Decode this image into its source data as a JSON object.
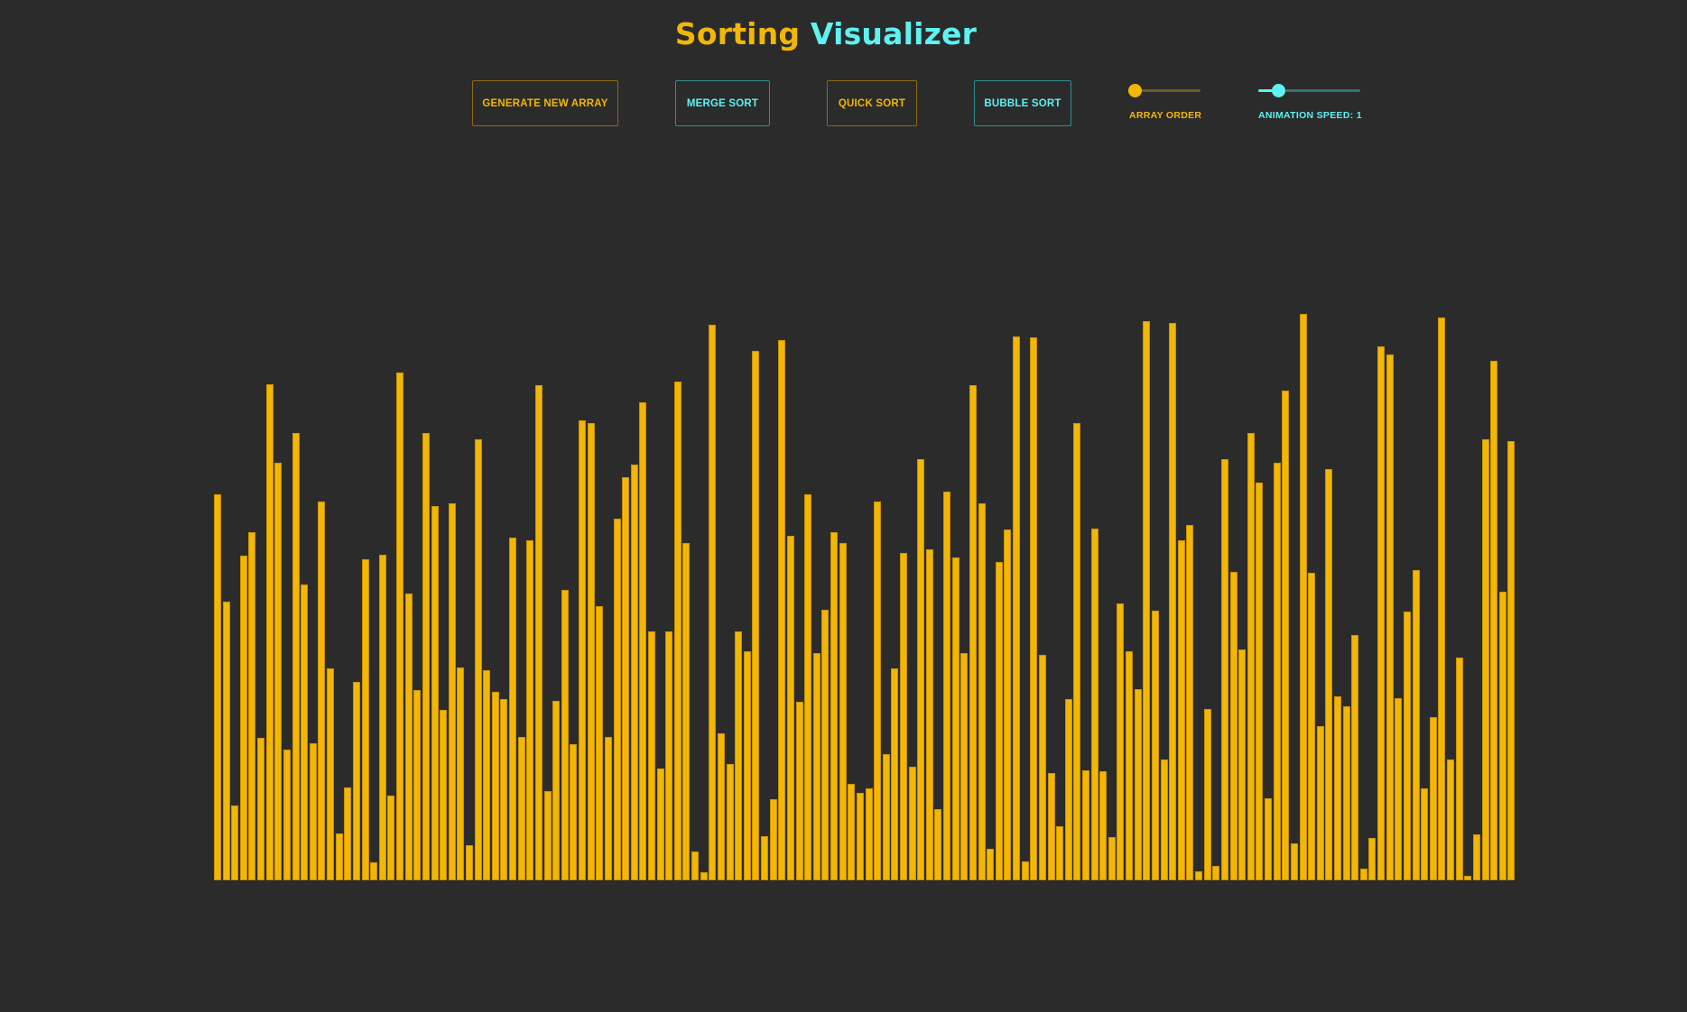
{
  "header": {
    "title_part1": "Sorting",
    "title_part2": "Visualizer"
  },
  "controls": {
    "generate_label": "GENERATE NEW ARRAY",
    "merge_label": "MERGE SORT",
    "quick_label": "QUICK SORT",
    "bubble_label": "BUBBLE SORT",
    "array_order_label": "ARRAY ORDER",
    "animation_speed_label": "ANIMATION SPEED: 1",
    "array_order_value": 0,
    "animation_speed_value": 0.2
  },
  "colors": {
    "gold": "#f2b705",
    "cyan": "#5ef2f2",
    "background": "#2b2b2b"
  },
  "chart_data": {
    "type": "bar",
    "ylim": [
      0,
      100
    ],
    "values": [
      69.8,
      50.5,
      13.6,
      58.8,
      63.0,
      25.8,
      89.8,
      75.6,
      23.6,
      80.9,
      53.5,
      24.9,
      68.5,
      38.3,
      8.5,
      16.8,
      35.9,
      58.2,
      3.3,
      58.9,
      15.4,
      91.9,
      52.0,
      34.5,
      80.9,
      67.7,
      30.8,
      68.3,
      38.5,
      6.4,
      79.9,
      38.1,
      34.1,
      32.8,
      62.0,
      25.9,
      61.5,
      89.7,
      16.2,
      32.5,
      52.5,
      24.7,
      83.3,
      82.7,
      49.7,
      26.0,
      65.4,
      73.0,
      75.2,
      86.5,
      45.1,
      20.3,
      45.1,
      90.3,
      61.1,
      5.3,
      1.4,
      100.6,
      26.6,
      21.1,
      45.0,
      41.5,
      95.9,
      8.0,
      14.7,
      97.8,
      62.4,
      32.4,
      69.9,
      41.2,
      49.0,
      63.1,
      61.0,
      17.4,
      15.8,
      16.6,
      68.5,
      22.8,
      38.3,
      59.2,
      20.5,
      76.2,
      60.0,
      12.9,
      70.4,
      58.4,
      41.1,
      89.6,
      68.2,
      5.8,
      57.6,
      63.5,
      98.5,
      3.5,
      98.3,
      40.8,
      19.4,
      9.8,
      32.8,
      82.7,
      20.0,
      63.6,
      19.7,
      7.8,
      50.2,
      41.4,
      34.6,
      101.2,
      48.8,
      21.9,
      100.9,
      61.6,
      64.3,
      1.6,
      31.0,
      2.6,
      76.2,
      55.8,
      41.8,
      80.9,
      72.0,
      14.9,
      75.6,
      88.6,
      6.7,
      102.5,
      55.7,
      28.0,
      74.5,
      33.3,
      31.5,
      44.4,
      2.1,
      7.7,
      96.7,
      95.2,
      33.0,
      48.6,
      56.1,
      16.7,
      29.5,
      101.9,
      21.9,
      40.3,
      0.9,
      8.3,
      79.9,
      94.1,
      52.2,
      79.5
    ]
  }
}
